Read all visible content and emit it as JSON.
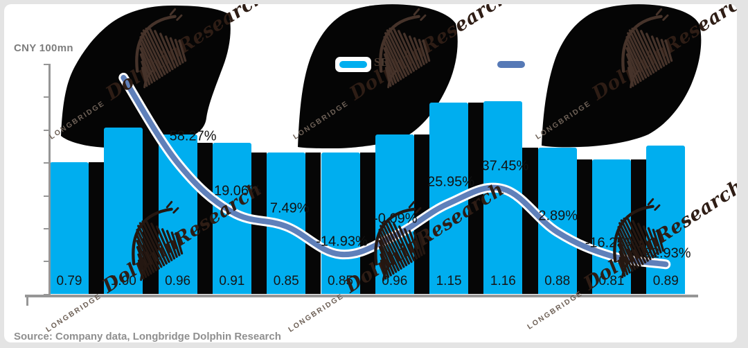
{
  "page": {
    "unit_label": "CNY 100mn",
    "source_note": "Source: Company data, Longbridge Dolphin Research",
    "background_color": "#ffffff",
    "frame_color": "#e4e4e4"
  },
  "legend": {
    "items": [
      {
        "label": "SB",
        "swatch_color": "#00AEEF",
        "shape": "bar-swatch"
      },
      {
        "label": "",
        "swatch_color": "#5679B6",
        "shape": "line-swatch"
      }
    ]
  },
  "watermark": {
    "brand": "LONGBRIDGE",
    "name": "DolphinResearch",
    "logo": "dolphin-scribble"
  },
  "chart_data": {
    "type": "bar+line",
    "title": "",
    "ylabel": "CNY 100mn",
    "y_axis": {
      "labels_visible": false,
      "estimated_range": [
        0,
        1.4
      ],
      "grid": false
    },
    "x_axis": {
      "tick_labels_visible": false
    },
    "legend_position": "top",
    "bar_series": {
      "legend_label": "SB",
      "color": "#00AEEF",
      "values": [
        0.79,
        1.0,
        0.96,
        0.91,
        0.85,
        0.85,
        0.96,
        1.15,
        1.16,
        0.88,
        0.81,
        0.89
      ],
      "value_labels": [
        "0.79",
        "1.00",
        "0.96",
        "0.91",
        "0.85",
        "0.85",
        "0.96",
        "1.15",
        "1.16",
        "0.88",
        "0.81",
        "0.89"
      ]
    },
    "line_series": {
      "legend_label": "",
      "color": "#5679B6",
      "first_labeled_bar_index": 3,
      "pct_values": [
        58.27,
        19.06,
        7.49,
        -14.93,
        -0.09,
        25.95,
        37.45,
        2.89,
        -16.25,
        -22.93
      ],
      "pct_labels": [
        "58.27%",
        "19.06%",
        "7.49%",
        "-14.93%",
        "-0.09%",
        "25.95%",
        "37.45%",
        "2.89%",
        "-16.25%",
        "-22.93%"
      ]
    },
    "source": "Source: Company data, Longbridge Dolphin Research"
  }
}
